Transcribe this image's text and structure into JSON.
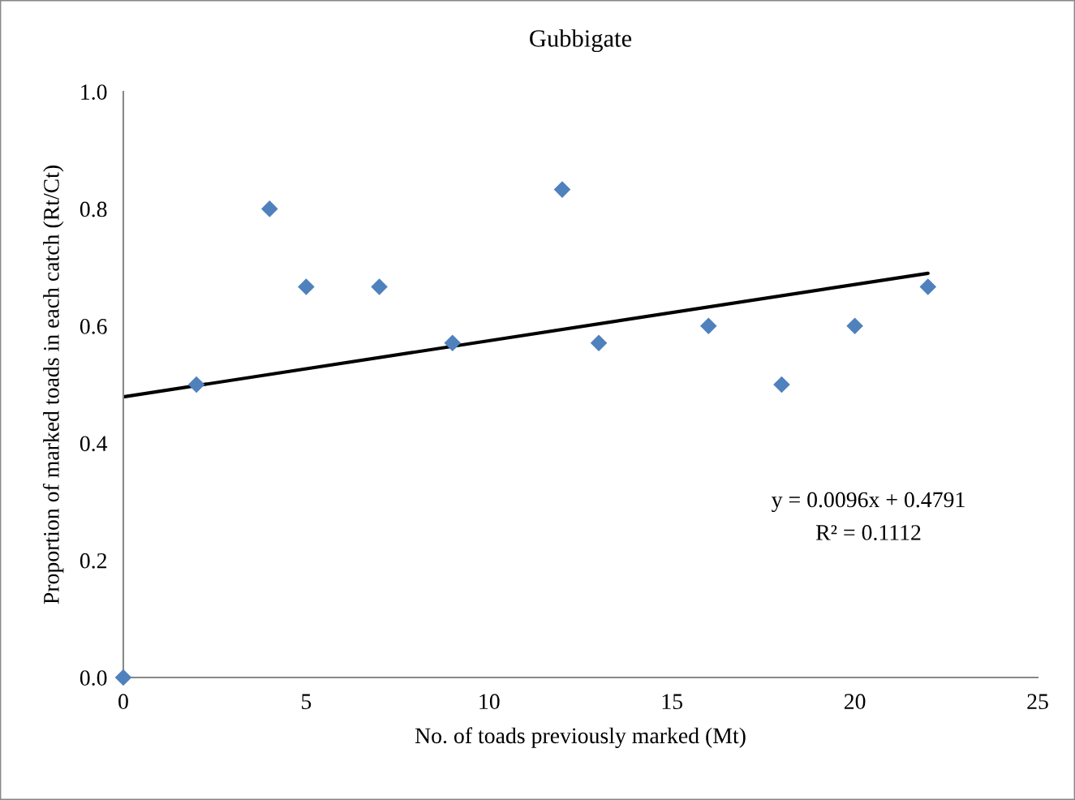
{
  "chart_data": {
    "type": "scatter",
    "title": "Gubbigate",
    "xlabel": "No. of toads previously marked (Mt)",
    "ylabel": "Proportion of marked toads in each catch (Rt/Ct)",
    "x": [
      0,
      2,
      4,
      5,
      7,
      9,
      12,
      13,
      16,
      18,
      20,
      22
    ],
    "series": [
      {
        "color": "#4f81bd",
        "marker": "diamond",
        "values": [
          0,
          0.5,
          0.8,
          0.667,
          0.667,
          0.571,
          0.833,
          0.571,
          0.6,
          0.5,
          0.6,
          0.667
        ]
      },
      {
        "type": "line",
        "color": "#000000",
        "marker": "none",
        "x": [
          0,
          22
        ],
        "values": [
          0.479,
          0.69
        ]
      }
    ],
    "xlim": [
      0,
      25
    ],
    "xticks": [
      0,
      5,
      10,
      15,
      20,
      25
    ],
    "ylim": [
      0,
      1.0
    ],
    "yticks": [
      {
        "value": 0,
        "label": "0.0"
      },
      {
        "value": 0.2,
        "label": "0.2"
      },
      {
        "value": 0.4,
        "label": "0.4"
      },
      {
        "value": 0.6,
        "label": "0.6"
      },
      {
        "value": 0.8,
        "label": "0.8"
      },
      {
        "value": 1.0,
        "label": "1.0"
      }
    ],
    "grid": false,
    "annotations": [
      "y = 0.0096x + 0.4791",
      "R² = 0.1112"
    ]
  }
}
